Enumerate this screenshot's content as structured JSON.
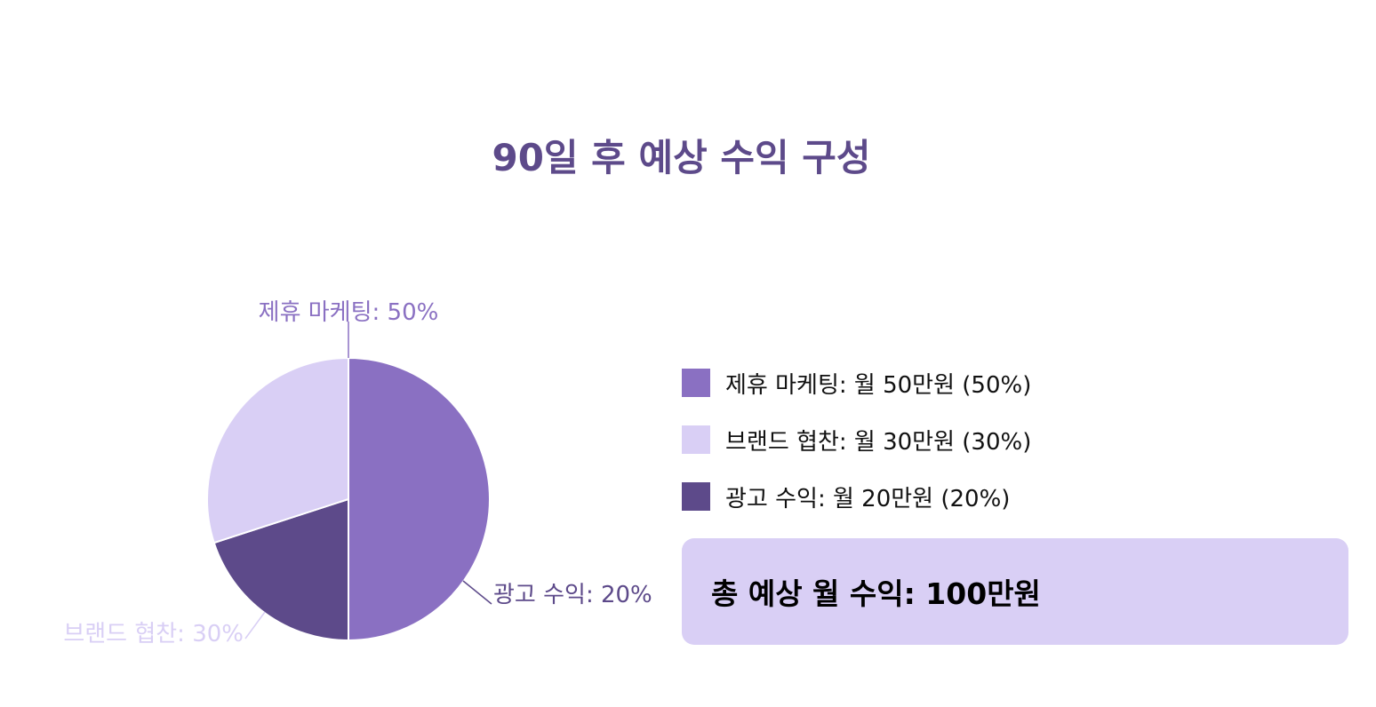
{
  "title": "90일 후 예상 수익 구성",
  "colors": {
    "title": "#5d4a8a",
    "affiliate": "#8a70c2",
    "brand": "#d9cff5",
    "ads": "#5d4a8a",
    "total_bg": "#d9cff5"
  },
  "chart_data": {
    "type": "pie",
    "title": "90일 후 예상 수익 구성",
    "slices": [
      {
        "name": "제휴 마케팅",
        "value": 50,
        "label": "제휴 마케팅: 50%",
        "color": "#8a70c2"
      },
      {
        "name": "광고 수익",
        "value": 20,
        "label": "광고 수익: 20%",
        "color": "#5d4a8a"
      },
      {
        "name": "브랜드 협찬",
        "value": 30,
        "label": "브랜드 협찬: 30%",
        "color": "#d9cff5"
      }
    ]
  },
  "legend": {
    "items": [
      {
        "label": "제휴 마케팅: 월 50만원 (50%)",
        "color": "#8a70c2"
      },
      {
        "label": "브랜드 협찬: 월 30만원 (30%)",
        "color": "#d9cff5"
      },
      {
        "label": "광고 수익: 월 20만원 (20%)",
        "color": "#5d4a8a"
      }
    ]
  },
  "total": {
    "label": "총 예상 월 수익: 100만원"
  }
}
